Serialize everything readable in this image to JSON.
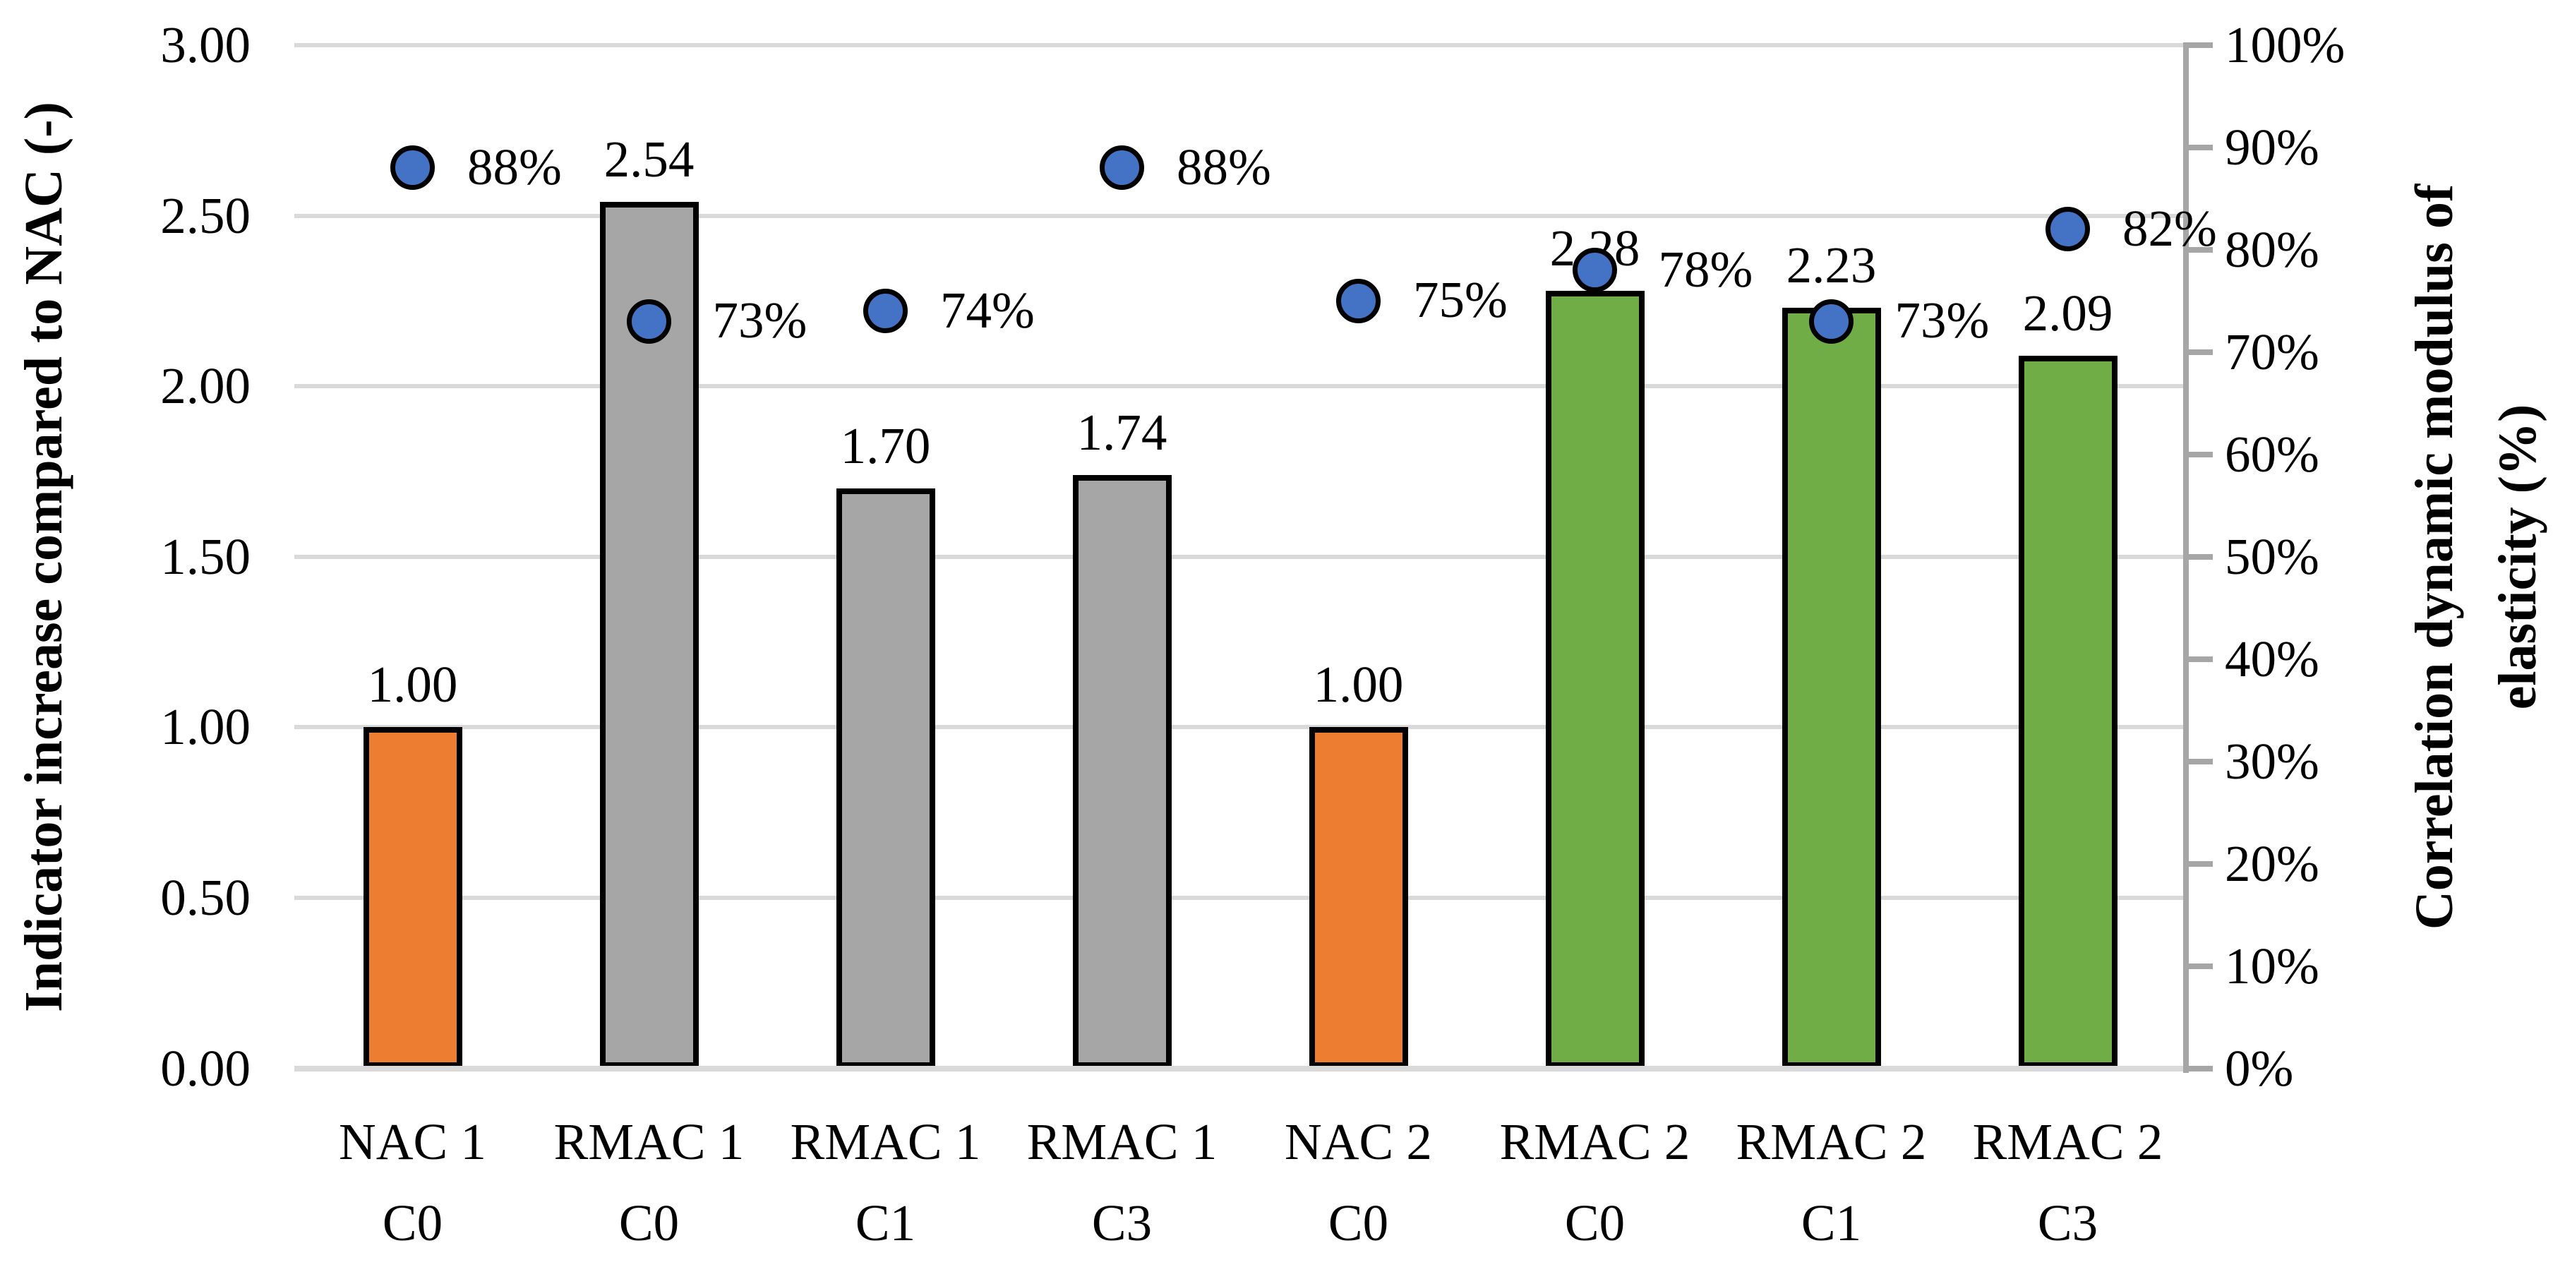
{
  "chart_data": {
    "type": "bar",
    "subtype": "combo-bar-scatter-dual-axis",
    "title": "",
    "legend": "none",
    "grid": "horizontal",
    "background": "#FFFFFF",
    "gridline_color": "#D9D9D9",
    "categories": [
      {
        "line1": "NAC 1",
        "line2": "C0"
      },
      {
        "line1": "RMAC 1",
        "line2": "C0"
      },
      {
        "line1": "RMAC 1",
        "line2": "C1"
      },
      {
        "line1": "RMAC 1",
        "line2": "C3"
      },
      {
        "line1": "NAC 2",
        "line2": "C0"
      },
      {
        "line1": "RMAC 2",
        "line2": "C0"
      },
      {
        "line1": "RMAC 2",
        "line2": "C1"
      },
      {
        "line1": "RMAC 2",
        "line2": "C3"
      }
    ],
    "series": [
      {
        "name": "Indicator increase compared to NAC",
        "type": "bar",
        "axis": "left",
        "values": [
          1.0,
          2.54,
          1.7,
          1.74,
          1.0,
          2.28,
          2.23,
          2.09
        ],
        "labels": [
          "1.00",
          "2.54",
          "1.70",
          "1.74",
          "1.00",
          "2.28",
          "2.23",
          "2.09"
        ],
        "bar_colors": [
          "#ED7D31",
          "#A6A6A6",
          "#A6A6A6",
          "#A6A6A6",
          "#ED7D31",
          "#70AD47",
          "#70AD47",
          "#70AD47"
        ],
        "bar_border_color": "#000000"
      },
      {
        "name": "Correlation dynamic modulus of elasticity",
        "type": "scatter",
        "axis": "right",
        "values_percent": [
          88,
          73,
          74,
          88,
          75,
          78,
          73,
          82
        ],
        "labels": [
          "88%",
          "73%",
          "74%",
          "88%",
          "75%",
          "78%",
          "73%",
          "82%"
        ],
        "marker_color": "#4472C4",
        "marker_border_color": "#000000"
      }
    ],
    "left_axis": {
      "label": "Indicator increase compared to NAC (-)",
      "min": 0,
      "max": 3,
      "step": 0.5,
      "tick_labels": [
        "0.00",
        "0.50",
        "1.00",
        "1.50",
        "2.00",
        "2.50",
        "3.00"
      ]
    },
    "right_axis": {
      "label_line1": "Correlation dynamic modulus of",
      "label_line2": "elasticity (%)",
      "min": 0,
      "max": 100,
      "step": 10,
      "tick_labels": [
        "0%",
        "10%",
        "20%",
        "30%",
        "40%",
        "50%",
        "60%",
        "70%",
        "80%",
        "90%",
        "100%"
      ],
      "line_color": "#A6A6A6"
    }
  }
}
